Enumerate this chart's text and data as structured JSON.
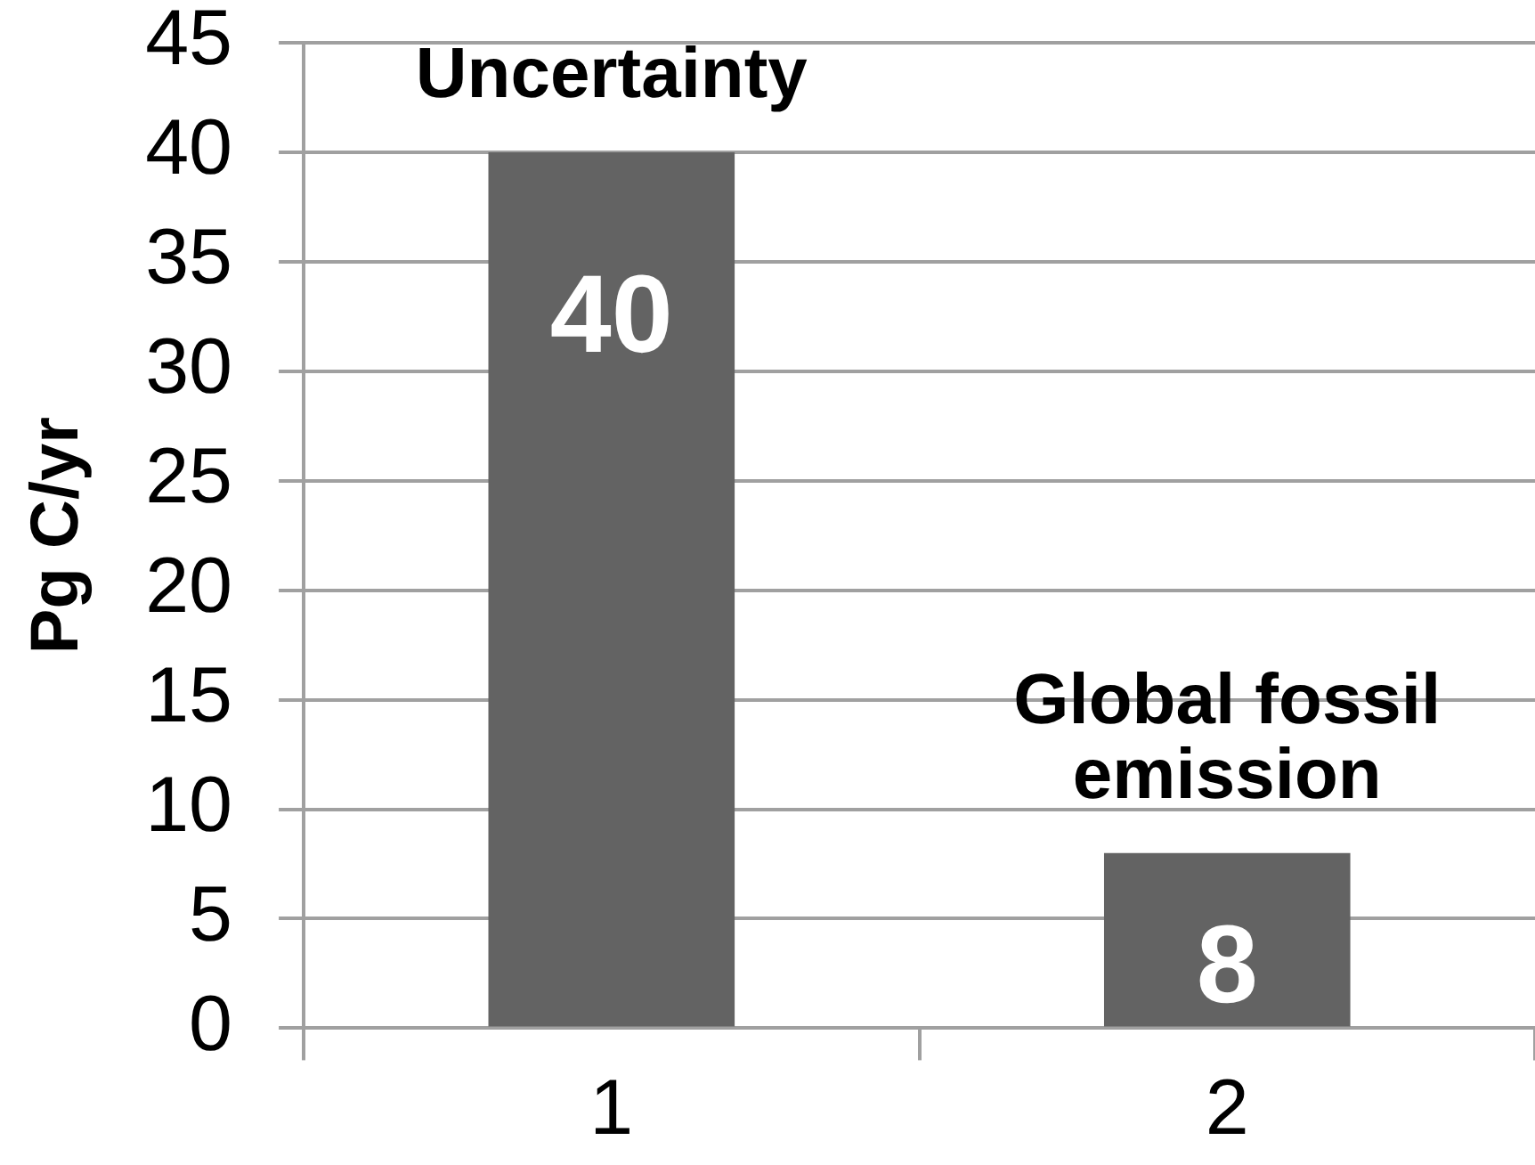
{
  "chart_data": {
    "type": "bar",
    "ylabel": "Pg C/yr",
    "categories": [
      "1",
      "2"
    ],
    "values": [
      40,
      8
    ],
    "color": "#636363",
    "ylim": [
      0,
      45
    ],
    "yticks": [
      0,
      5,
      10,
      15,
      20,
      25,
      30,
      35,
      40,
      45
    ],
    "grid": "y",
    "data_labels": true,
    "annotations": [
      {
        "text": "Uncertainty",
        "x": "1",
        "y": 40
      },
      {
        "text": "Global fossil emission",
        "x": "2",
        "y": 8
      }
    ]
  }
}
